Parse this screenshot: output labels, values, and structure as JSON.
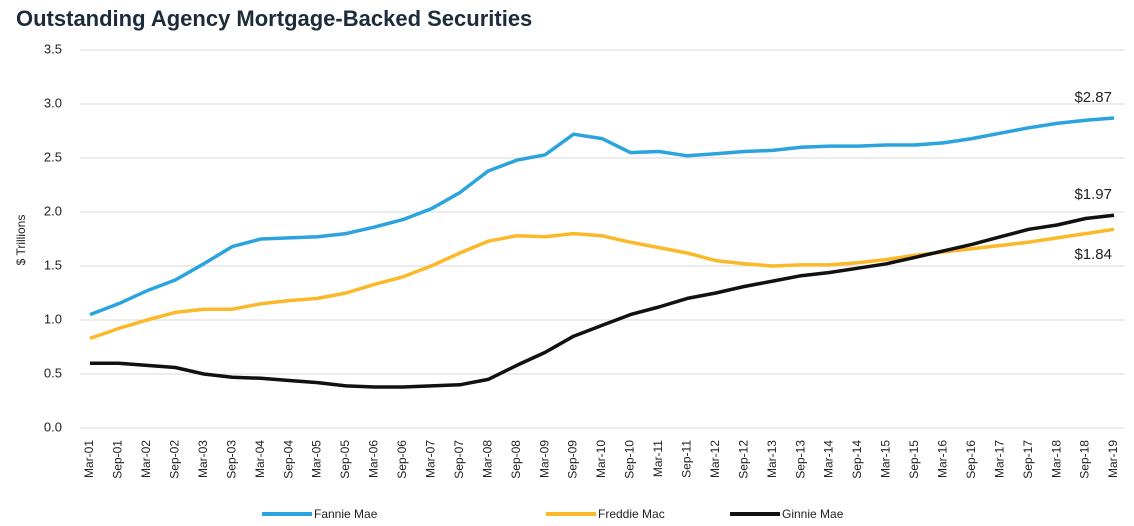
{
  "chart_data": {
    "type": "line",
    "title": "Outstanding Agency Mortgage-Backed Securities",
    "y_label": "$ Trillions",
    "categories": [
      "Mar-01",
      "Sep-01",
      "Mar-02",
      "Sep-02",
      "Mar-03",
      "Sep-03",
      "Mar-04",
      "Sep-04",
      "Mar-05",
      "Sep-05",
      "Mar-06",
      "Sep-06",
      "Mar-07",
      "Sep-07",
      "Mar-08",
      "Sep-08",
      "Mar-09",
      "Sep-09",
      "Mar-10",
      "Sep-10",
      "Mar-11",
      "Sep-11",
      "Mar-12",
      "Sep-12",
      "Mar-13",
      "Sep-13",
      "Mar-14",
      "Sep-14",
      "Mar-15",
      "Sep-15",
      "Mar-16",
      "Sep-16",
      "Mar-17",
      "Sep-17",
      "Mar-18",
      "Sep-18",
      "Mar-19"
    ],
    "series": [
      {
        "name": "Fannie Mae",
        "color": "#2ba3dc",
        "values": [
          1.05,
          1.15,
          1.27,
          1.37,
          1.52,
          1.68,
          1.75,
          1.76,
          1.77,
          1.8,
          1.86,
          1.93,
          2.03,
          2.18,
          2.38,
          2.48,
          2.53,
          2.72,
          2.68,
          2.55,
          2.56,
          2.52,
          2.54,
          2.56,
          2.57,
          2.6,
          2.61,
          2.61,
          2.62,
          2.62,
          2.64,
          2.68,
          2.73,
          2.78,
          2.82,
          2.85,
          2.87
        ],
        "value_labels": [
          null,
          null,
          null,
          null,
          null,
          null,
          null,
          null,
          null,
          null,
          null,
          null,
          null,
          null,
          null,
          null,
          null,
          null,
          null,
          null,
          null,
          null,
          null,
          null,
          null,
          null,
          null,
          null,
          null,
          null,
          null,
          null,
          null,
          null,
          null,
          null,
          "$2.87"
        ]
      },
      {
        "name": "Freddie Mac",
        "color": "#fbb829",
        "values": [
          0.83,
          0.92,
          1.0,
          1.07,
          1.1,
          1.1,
          1.15,
          1.18,
          1.2,
          1.25,
          1.33,
          1.4,
          1.5,
          1.62,
          1.73,
          1.78,
          1.77,
          1.8,
          1.78,
          1.72,
          1.67,
          1.62,
          1.55,
          1.52,
          1.5,
          1.51,
          1.51,
          1.53,
          1.56,
          1.6,
          1.63,
          1.66,
          1.69,
          1.72,
          1.76,
          1.8,
          1.84
        ],
        "value_labels": [
          null,
          null,
          null,
          null,
          null,
          null,
          null,
          null,
          null,
          null,
          null,
          null,
          null,
          null,
          null,
          null,
          null,
          null,
          null,
          null,
          null,
          null,
          null,
          null,
          null,
          null,
          null,
          null,
          null,
          null,
          null,
          null,
          null,
          null,
          null,
          null,
          "$1.84"
        ]
      },
      {
        "name": "Ginnie Mae",
        "color": "#111111",
        "values": [
          0.6,
          0.6,
          0.58,
          0.56,
          0.5,
          0.47,
          0.46,
          0.44,
          0.42,
          0.39,
          0.38,
          0.38,
          0.39,
          0.4,
          0.45,
          0.58,
          0.7,
          0.85,
          0.95,
          1.05,
          1.12,
          1.2,
          1.25,
          1.31,
          1.36,
          1.41,
          1.44,
          1.48,
          1.52,
          1.58,
          1.64,
          1.7,
          1.77,
          1.84,
          1.88,
          1.94,
          1.97
        ],
        "value_labels": [
          null,
          null,
          null,
          null,
          null,
          null,
          null,
          null,
          null,
          null,
          null,
          null,
          null,
          null,
          null,
          null,
          null,
          null,
          null,
          null,
          null,
          null,
          null,
          null,
          null,
          null,
          null,
          null,
          null,
          null,
          null,
          null,
          null,
          null,
          null,
          null,
          "$1.97"
        ]
      }
    ],
    "ylim": [
      0,
      3.5
    ],
    "yticks": [
      {
        "value": 0,
        "label": "0.0"
      },
      0.5,
      {
        "value": 1,
        "label": "1.0"
      },
      1.5,
      {
        "value": 2,
        "label": "2.0"
      },
      2.5,
      {
        "value": 3,
        "label": "3.0"
      },
      3.5
    ],
    "grid": true,
    "legend": "bottom"
  }
}
